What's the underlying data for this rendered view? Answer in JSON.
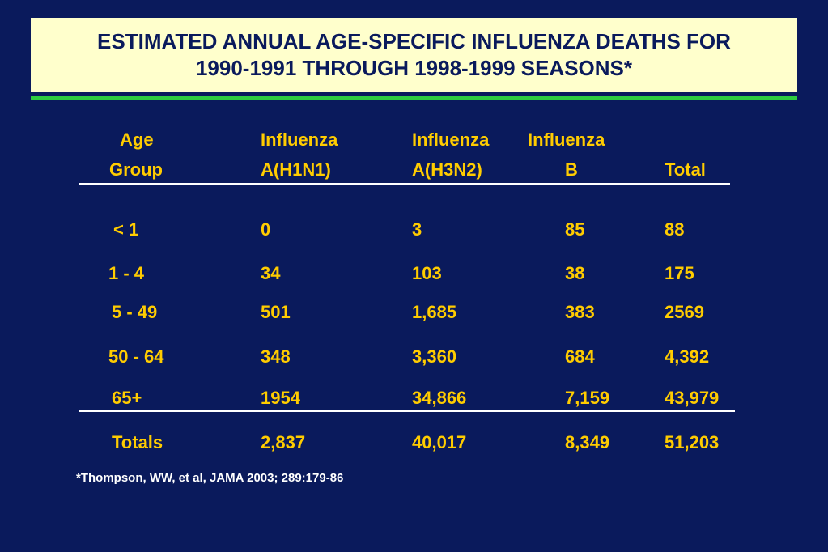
{
  "title": {
    "line1": "ESTIMATED ANNUAL AGE-SPECIFIC INFLUENZA DEATHS FOR",
    "line2": "1990-1991 THROUGH 1998-1999 SEASONS*"
  },
  "table": {
    "headers": [
      {
        "line1": "Age",
        "line2": "Group"
      },
      {
        "line1": "Influenza",
        "line2": "A(H1N1)"
      },
      {
        "line1": "Influenza",
        "line2": "A(H3N2)"
      },
      {
        "line1": "Influenza",
        "line2": "B"
      },
      {
        "line1": "",
        "line2": "Total"
      }
    ],
    "rows": [
      [
        "< 1",
        "0",
        "3",
        "85",
        "88"
      ],
      [
        "1 - 4",
        "34",
        "103",
        "38",
        "175"
      ],
      [
        "5 - 49",
        "501",
        "1,685",
        "383",
        "2569"
      ],
      [
        "50 - 64",
        "348",
        "3,360",
        "684",
        "4,392"
      ],
      [
        "65+",
        "1954",
        "34,866",
        "7,159",
        "43,979"
      ]
    ],
    "totals": [
      "Totals",
      "2,837",
      "40,017",
      "8,349",
      "51,203"
    ]
  },
  "footnote": "*Thompson, WW, et al, JAMA 2003; 289:179-86",
  "colors": {
    "background": "#0a1a5c",
    "title_box": "#ffffcc",
    "text": "#ffcc00",
    "accent_rule": "#2ecc40"
  }
}
